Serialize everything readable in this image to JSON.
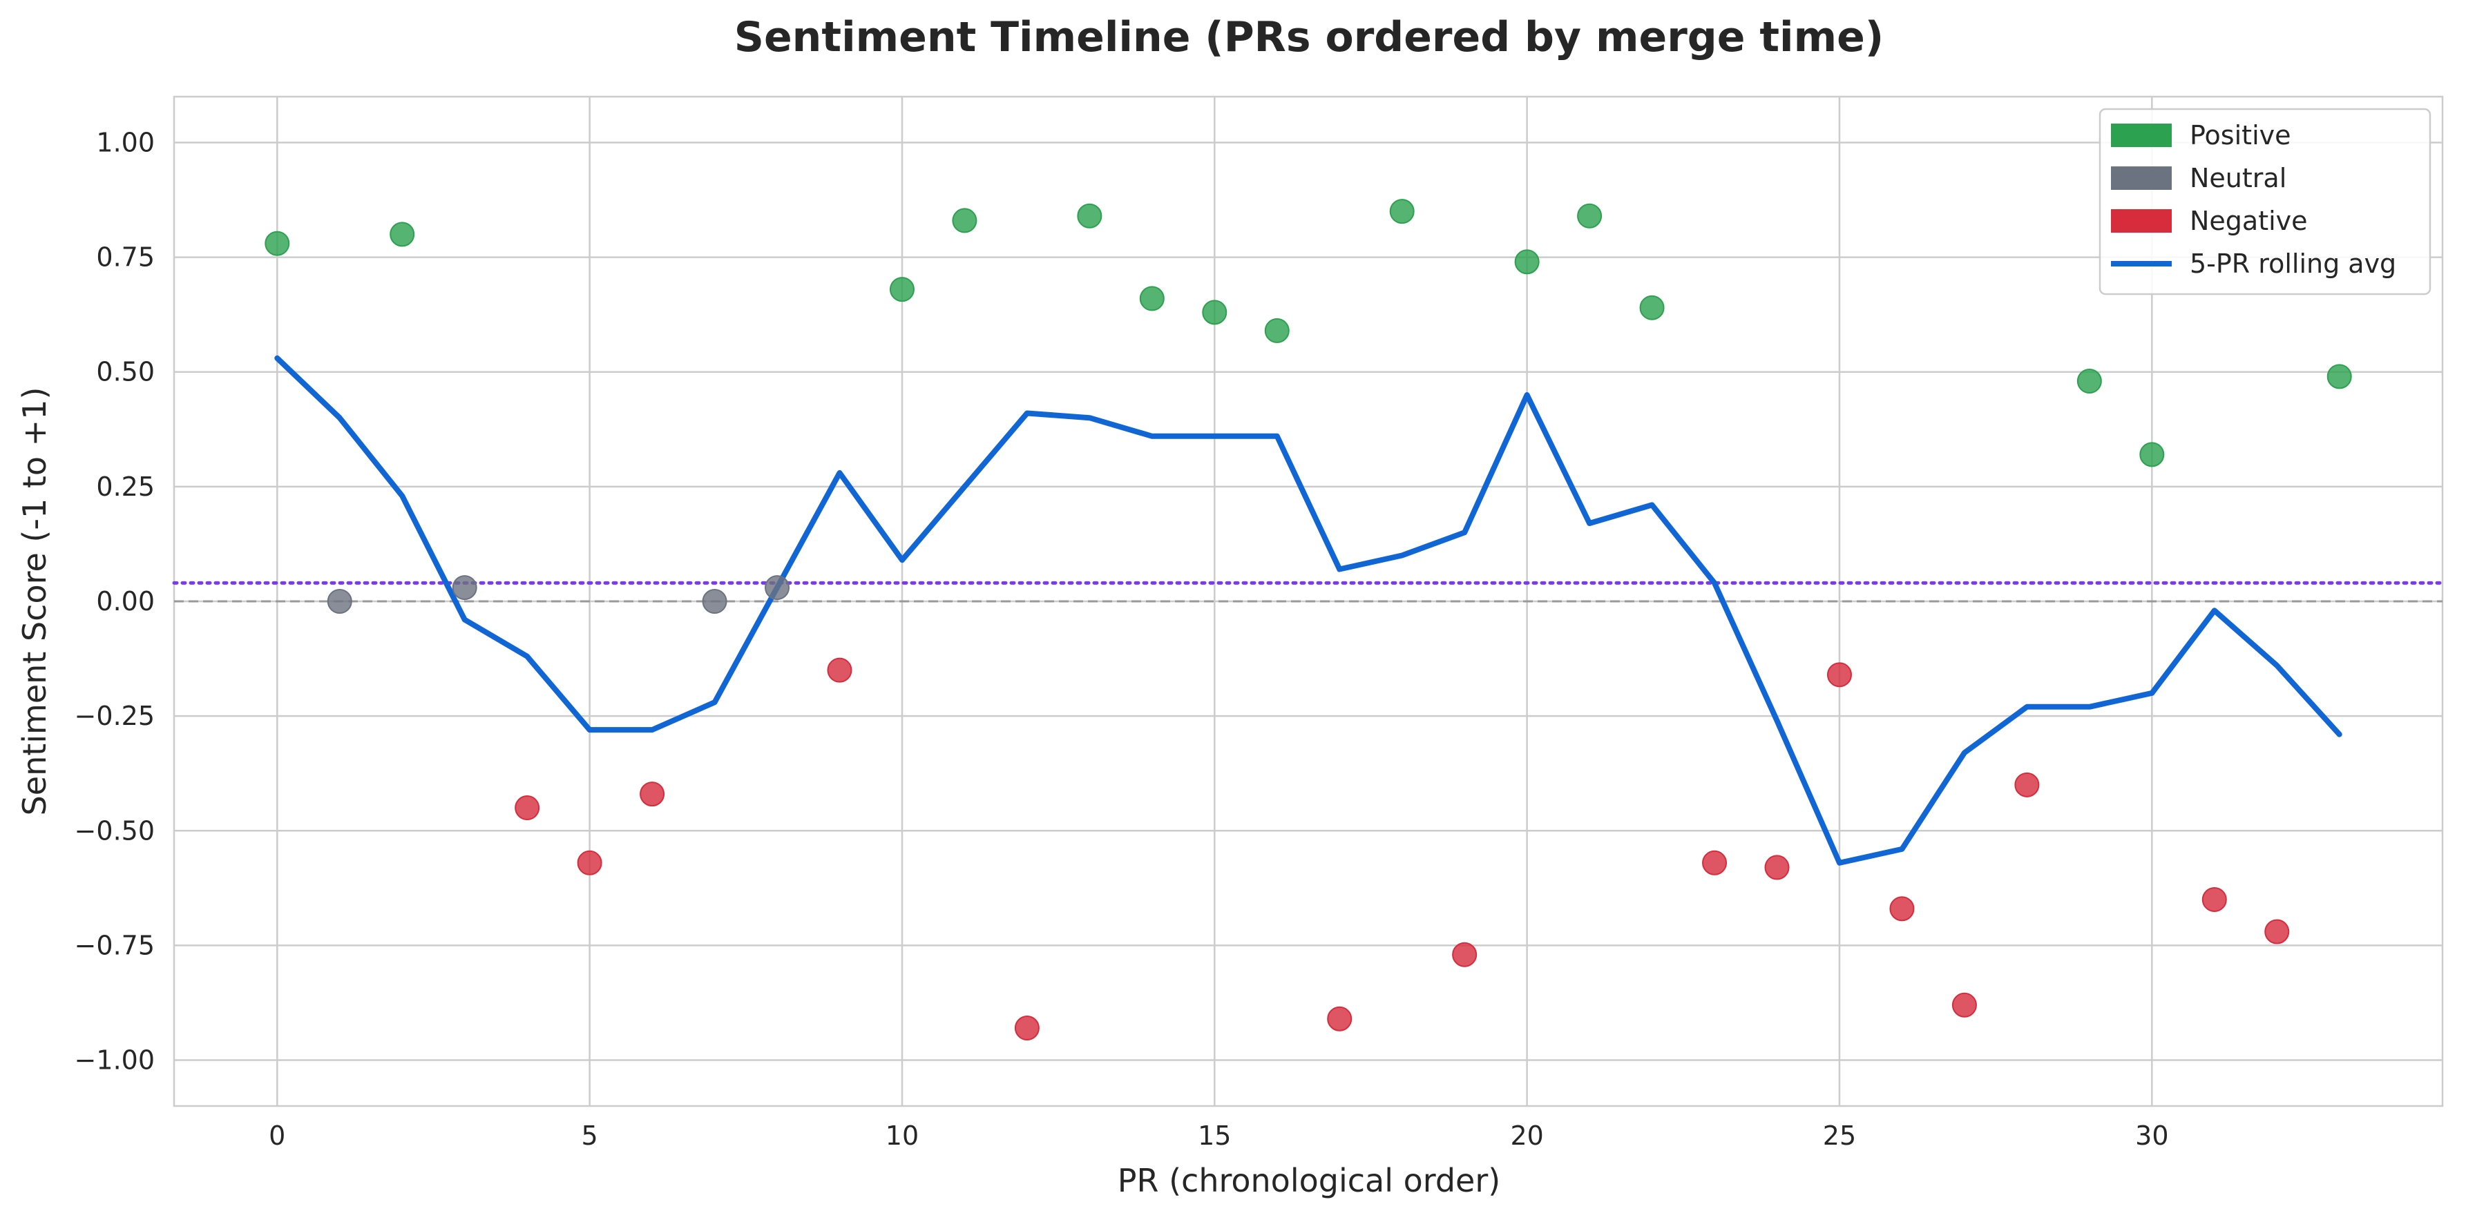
{
  "chart_data": {
    "type": "scatter",
    "title": "Sentiment Timeline (PRs ordered by merge time)",
    "xlabel": "PR (chronological order)",
    "ylabel": "Sentiment Score (-1 to +1)",
    "xlim": [
      -1.65,
      34.65
    ],
    "ylim": [
      -1.1,
      1.1
    ],
    "xticks": [
      0,
      5,
      10,
      15,
      20,
      25,
      30
    ],
    "yticks": [
      -1.0,
      -0.75,
      -0.5,
      -0.25,
      0.0,
      0.25,
      0.5,
      0.75,
      1.0
    ],
    "ytick_labels": [
      "−1.00",
      "−0.75",
      "−0.50",
      "−0.25",
      "0.00",
      "0.25",
      "0.50",
      "0.75",
      "1.00"
    ],
    "grid": true,
    "legend_position": "top-right",
    "zero_line": 0.0,
    "mean_line": 0.04,
    "colors": {
      "positive": "#2ca14f",
      "neutral": "#6b7280",
      "negative": "#d62c3c",
      "rolling": "#1166d6",
      "mean_line": "#7c3aed",
      "zero_line": "#999999"
    },
    "points": [
      {
        "x": 0,
        "y": 0.78,
        "category": "positive"
      },
      {
        "x": 1,
        "y": 0.0,
        "category": "neutral"
      },
      {
        "x": 2,
        "y": 0.8,
        "category": "positive"
      },
      {
        "x": 3,
        "y": 0.03,
        "category": "neutral"
      },
      {
        "x": 4,
        "y": -0.45,
        "category": "negative"
      },
      {
        "x": 5,
        "y": -0.57,
        "category": "negative"
      },
      {
        "x": 6,
        "y": -0.42,
        "category": "negative"
      },
      {
        "x": 7,
        "y": 0.0,
        "category": "neutral"
      },
      {
        "x": 8,
        "y": 0.03,
        "category": "neutral"
      },
      {
        "x": 9,
        "y": -0.15,
        "category": "negative"
      },
      {
        "x": 10,
        "y": 0.68,
        "category": "positive"
      },
      {
        "x": 11,
        "y": 0.83,
        "category": "positive"
      },
      {
        "x": 12,
        "y": -0.93,
        "category": "negative"
      },
      {
        "x": 13,
        "y": 0.84,
        "category": "positive"
      },
      {
        "x": 14,
        "y": 0.66,
        "category": "positive"
      },
      {
        "x": 15,
        "y": 0.63,
        "category": "positive"
      },
      {
        "x": 16,
        "y": 0.59,
        "category": "positive"
      },
      {
        "x": 17,
        "y": -0.91,
        "category": "negative"
      },
      {
        "x": 18,
        "y": 0.85,
        "category": "positive"
      },
      {
        "x": 19,
        "y": -0.77,
        "category": "negative"
      },
      {
        "x": 20,
        "y": 0.74,
        "category": "positive"
      },
      {
        "x": 21,
        "y": 0.84,
        "category": "positive"
      },
      {
        "x": 22,
        "y": 0.64,
        "category": "positive"
      },
      {
        "x": 23,
        "y": -0.57,
        "category": "negative"
      },
      {
        "x": 24,
        "y": -0.58,
        "category": "negative"
      },
      {
        "x": 25,
        "y": -0.16,
        "category": "negative"
      },
      {
        "x": 26,
        "y": -0.67,
        "category": "negative"
      },
      {
        "x": 27,
        "y": -0.88,
        "category": "negative"
      },
      {
        "x": 28,
        "y": -0.4,
        "category": "negative"
      },
      {
        "x": 29,
        "y": 0.48,
        "category": "positive"
      },
      {
        "x": 30,
        "y": 0.32,
        "category": "positive"
      },
      {
        "x": 31,
        "y": -0.65,
        "category": "negative"
      },
      {
        "x": 32,
        "y": -0.72,
        "category": "negative"
      },
      {
        "x": 33,
        "y": 0.49,
        "category": "positive"
      }
    ],
    "rolling_avg": {
      "name": "5-PR rolling avg",
      "x": [
        0,
        1,
        2,
        3,
        4,
        5,
        6,
        7,
        8,
        9,
        10,
        11,
        12,
        13,
        14,
        15,
        16,
        17,
        18,
        19,
        20,
        21,
        22,
        23,
        24,
        25,
        26,
        27,
        28,
        29,
        30,
        31,
        32,
        33
      ],
      "values": [
        0.53,
        0.4,
        0.23,
        -0.04,
        -0.12,
        -0.28,
        -0.28,
        -0.22,
        0.03,
        0.28,
        0.09,
        0.25,
        0.41,
        0.4,
        0.36,
        0.36,
        0.36,
        0.07,
        0.1,
        0.15,
        0.45,
        0.17,
        0.21,
        0.04,
        -0.26,
        -0.57,
        -0.54,
        -0.33,
        -0.23,
        -0.23,
        -0.2,
        -0.02,
        -0.14,
        -0.29
      ]
    },
    "legend": [
      {
        "label": "Positive",
        "kind": "patch",
        "color_key": "positive"
      },
      {
        "label": "Neutral",
        "kind": "patch",
        "color_key": "neutral"
      },
      {
        "label": "Negative",
        "kind": "patch",
        "color_key": "negative"
      },
      {
        "label": "5-PR rolling avg",
        "kind": "line",
        "color_key": "rolling"
      }
    ]
  }
}
